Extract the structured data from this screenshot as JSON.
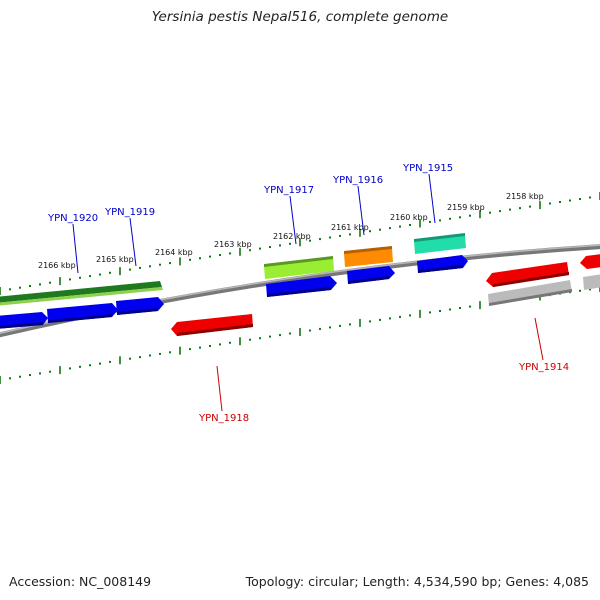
{
  "title": "Yersinia pestis Nepal516, complete genome",
  "footer": {
    "accession": "Accession: NC_008149",
    "summary": "Topology: circular; Length: 4,534,590 bp; Genes: 4,085"
  },
  "scale_labels": [
    "2166 kbp",
    "2165 kbp",
    "2164 kbp",
    "2163 kbp",
    "2162 kbp",
    "2161 kbp",
    "2160 kbp",
    "2159 kbp",
    "2158 kbp"
  ],
  "gene_labels": [
    {
      "id": "YPN_1920",
      "strand": "forward"
    },
    {
      "id": "YPN_1919",
      "strand": "forward"
    },
    {
      "id": "YPN_1917",
      "strand": "forward"
    },
    {
      "id": "YPN_1916",
      "strand": "forward"
    },
    {
      "id": "YPN_1915",
      "strand": "forward"
    },
    {
      "id": "YPN_1918",
      "strand": "reverse"
    },
    {
      "id": "YPN_1914",
      "strand": "reverse"
    }
  ],
  "colors": {
    "forward_label": "#0000cc",
    "reverse_label": "#cc0000",
    "backbone": "#888888",
    "tick": "#117711",
    "cds_blue": "#0000ee",
    "cds_red": "#ee0000",
    "dark_green": "#1f7a1f",
    "lime": "#99ee33",
    "orange": "#ff8c00",
    "teal": "#22ddaa",
    "grey": "#bbbbbb"
  }
}
